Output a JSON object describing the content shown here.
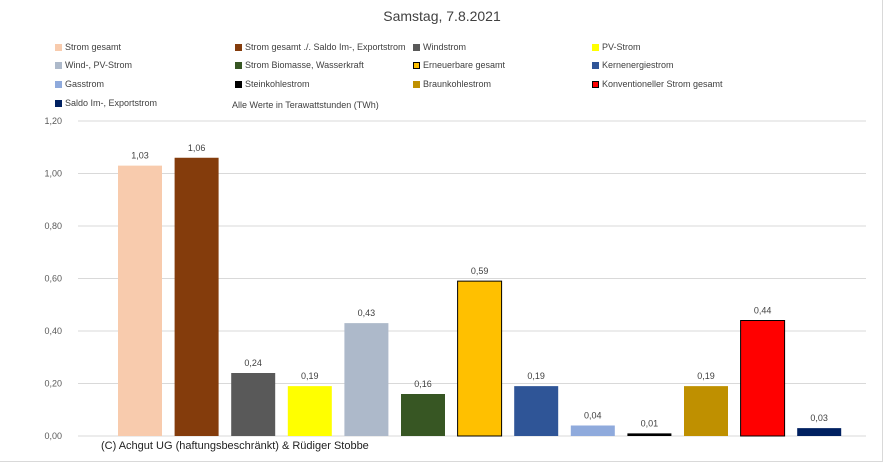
{
  "chart_data": {
    "type": "bar",
    "title": "Samstag, 7.8.2021",
    "note": "Alle Werte in Terawattstunden (TWh)",
    "copyright": "(C) Achgut UG (haftungsbeschränkt) & Rüdiger Stobbe",
    "ylim": [
      0,
      1.2
    ],
    "yticks": [
      "0,00",
      "0,20",
      "0,40",
      "0,60",
      "0,80",
      "1,00",
      "1,20"
    ],
    "grid": true,
    "legend_position": "top",
    "series": [
      {
        "name": "Strom gesamt",
        "value": 1.03,
        "label": "1,03",
        "color": "#f8cbad",
        "border": "none"
      },
      {
        "name": "Strom gesamt ./. Saldo Im-, Exportstrom",
        "value": 1.06,
        "label": "1,06",
        "color": "#843c0c",
        "border": "none"
      },
      {
        "name": "Windstrom",
        "value": 0.24,
        "label": "0,24",
        "color": "#595959",
        "border": "none"
      },
      {
        "name": "PV-Strom",
        "value": 0.19,
        "label": "0,19",
        "color": "#ffff00",
        "border": "none"
      },
      {
        "name": "Wind-, PV-Strom",
        "value": 0.43,
        "label": "0,43",
        "color": "#adb9ca",
        "border": "none"
      },
      {
        "name": "Strom Biomasse, Wasserkraft",
        "value": 0.16,
        "label": "0,16",
        "color": "#375623",
        "border": "none"
      },
      {
        "name": "Erneuerbare gesamt",
        "value": 0.59,
        "label": "0,59",
        "color": "#ffc000",
        "border": "#000000"
      },
      {
        "name": "Kernenergiestrom",
        "value": 0.19,
        "label": "0,19",
        "color": "#2f5597",
        "border": "none"
      },
      {
        "name": "Gasstrom",
        "value": 0.04,
        "label": "0,04",
        "color": "#8faadc",
        "border": "none"
      },
      {
        "name": "Steinkohlestrom",
        "value": 0.01,
        "label": "0,01",
        "color": "#000000",
        "border": "none"
      },
      {
        "name": "Braunkohlestrom",
        "value": 0.19,
        "label": "0,19",
        "color": "#bf9000",
        "border": "none"
      },
      {
        "name": "Konventioneller Strom gesamt",
        "value": 0.44,
        "label": "0,44",
        "color": "#ff0000",
        "border": "#000000"
      },
      {
        "name": "Saldo Im-, Exportstrom",
        "value": 0.03,
        "label": "0,03",
        "color": "#002060",
        "border": "none"
      }
    ]
  }
}
